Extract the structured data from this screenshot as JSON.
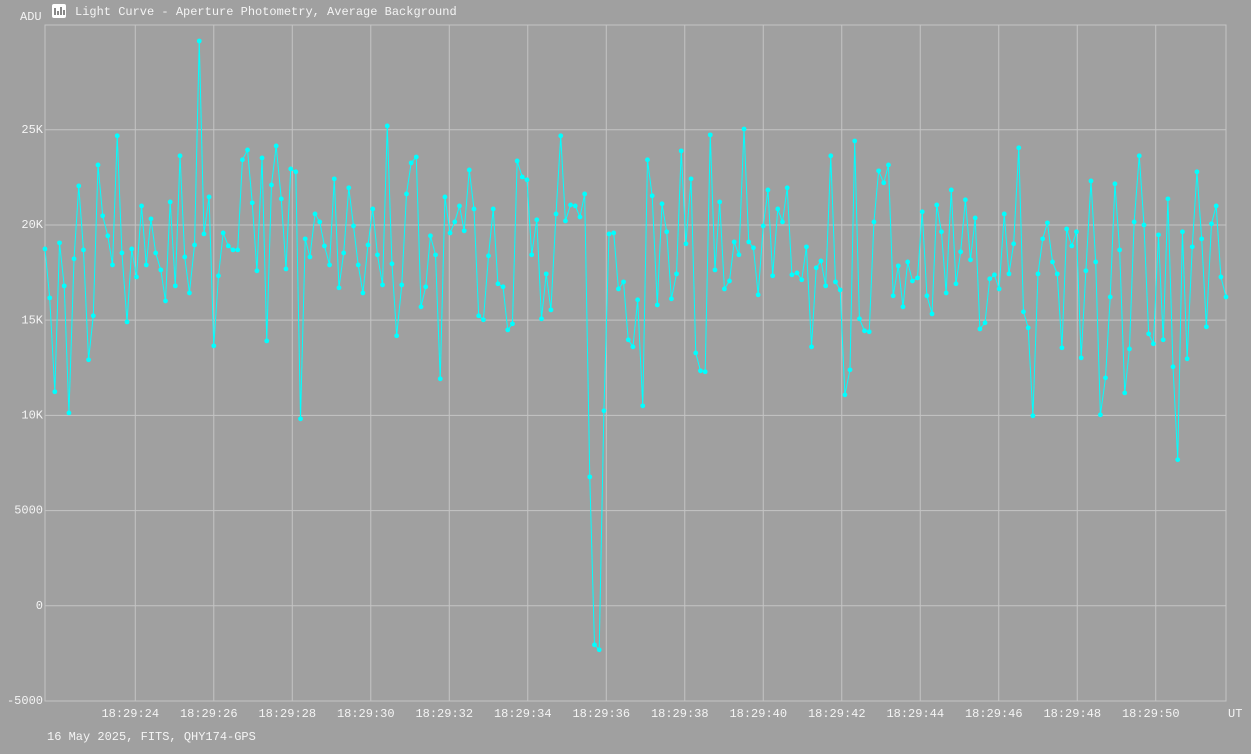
{
  "chart_data": {
    "type": "line",
    "title": "Light Curve - Aperture Photometry, Average Background",
    "y_label": "ADU",
    "x_label": "UT",
    "footer": "16 May 2025, FITS, QHY174-GPS",
    "x": [
      21.7,
      21.82,
      21.95,
      22.07,
      22.19,
      22.31,
      22.44,
      22.56,
      22.68,
      22.81,
      22.93,
      23.05,
      23.17,
      23.3,
      23.42,
      23.54,
      23.66,
      23.79,
      23.91,
      24.03,
      24.16,
      24.28,
      24.4,
      24.52,
      24.65,
      24.77,
      24.89,
      25.02,
      25.14,
      25.26,
      25.38,
      25.51,
      25.63,
      25.75,
      25.88,
      26.0,
      26.12,
      26.24,
      26.37,
      26.49,
      26.61,
      26.73,
      26.86,
      26.98,
      27.1,
      27.23,
      27.35,
      27.47,
      27.59,
      27.72,
      27.84,
      27.96,
      28.09,
      28.21,
      28.33,
      28.45,
      28.58,
      28.7,
      28.82,
      28.95,
      29.07,
      29.19,
      29.31,
      29.44,
      29.56,
      29.68,
      29.8,
      29.93,
      30.05,
      30.17,
      30.3,
      30.42,
      30.54,
      30.66,
      30.79,
      30.91,
      31.03,
      31.16,
      31.28,
      31.4,
      31.52,
      31.65,
      31.77,
      31.89,
      32.02,
      32.14,
      32.26,
      32.38,
      32.51,
      32.63,
      32.75,
      32.87,
      33.0,
      33.12,
      33.24,
      33.37,
      33.49,
      33.61,
      33.73,
      33.86,
      33.98,
      34.1,
      34.23,
      34.35,
      34.47,
      34.59,
      34.72,
      34.84,
      34.96,
      35.09,
      35.21,
      35.33,
      35.45,
      35.58,
      35.7,
      35.82,
      35.94,
      36.07,
      36.19,
      36.31,
      36.44,
      36.56,
      36.68,
      36.8,
      36.93,
      37.05,
      37.17,
      37.3,
      37.42,
      37.54,
      37.66,
      37.79,
      37.91,
      38.03,
      38.16,
      38.28,
      38.4,
      38.52,
      38.65,
      38.77,
      38.89,
      39.01,
      39.14,
      39.26,
      39.38,
      39.51,
      39.63,
      39.75,
      39.87,
      40.0,
      40.12,
      40.24,
      40.37,
      40.49,
      40.61,
      40.73,
      40.86,
      40.98,
      41.1,
      41.23,
      41.35,
      41.47,
      41.59,
      41.72,
      41.84,
      41.96,
      42.08,
      42.21,
      42.33,
      42.45,
      42.58,
      42.7,
      42.82,
      42.94,
      43.07,
      43.19,
      43.31,
      43.44,
      43.56,
      43.68,
      43.8,
      43.93,
      44.05,
      44.17,
      44.3,
      44.42,
      44.54,
      44.66,
      44.79,
      44.91,
      45.03,
      45.15,
      45.28,
      45.4,
      45.52,
      45.65,
      45.77,
      45.89,
      46.01,
      46.14,
      46.26,
      46.38,
      46.51,
      46.63,
      46.75,
      46.87,
      47.0,
      47.12,
      47.24,
      47.37,
      47.49,
      47.61,
      47.73,
      47.86,
      47.98,
      48.1,
      48.22,
      48.35,
      48.47,
      48.59,
      48.72,
      48.84,
      48.96,
      49.08,
      49.21,
      49.33,
      49.45,
      49.58,
      49.7,
      49.82,
      49.94,
      50.07,
      50.19,
      50.31,
      50.44,
      50.56,
      50.68,
      50.8,
      50.93,
      51.05,
      51.17,
      51.29,
      51.42,
      51.54,
      51.66,
      51.79
    ],
    "series": [
      {
        "color": "#00ffff",
        "values": [
          18740,
          16170,
          11240,
          19060,
          16800,
          10130,
          18220,
          22050,
          18690,
          12920,
          15230,
          23150,
          20480,
          19430,
          17900,
          24680,
          18530,
          14910,
          18740,
          17270,
          21000,
          17900,
          20320,
          18530,
          17640,
          16010,
          21210,
          16800,
          23630,
          18320,
          16430,
          18950,
          29660,
          19530,
          21470,
          13650,
          17330,
          19580,
          18900,
          18690,
          18690,
          23420,
          23940,
          21160,
          17590,
          23520,
          13910,
          22100,
          24150,
          21370,
          17690,
          22940,
          22790,
          9820,
          19270,
          18320,
          20580,
          20160,
          18900,
          17900,
          22420,
          16700,
          18530,
          21950,
          19950,
          17900,
          16430,
          18950,
          20840,
          18430,
          16850,
          25200,
          17960,
          14180,
          16850,
          21630,
          23260,
          23570,
          15700,
          16750,
          19430,
          18430,
          11920,
          21470,
          19580,
          20160,
          21000,
          19690,
          22890,
          20840,
          15230,
          15020,
          18380,
          20840,
          16910,
          16750,
          14490,
          14810,
          23360,
          22520,
          22370,
          18430,
          20270,
          15070,
          17430,
          15540,
          20580,
          24680,
          20210,
          21050,
          21000,
          20420,
          21630,
          6770,
          -2050,
          -2310,
          10240,
          19530,
          19580,
          16640,
          17010,
          13970,
          13600,
          16070,
          10500,
          23420,
          21530,
          15800,
          21110,
          19640,
          16120,
          17430,
          23890,
          19010,
          22420,
          13280,
          12340,
          12290,
          24730,
          17640,
          21210,
          16640,
          17060,
          19110,
          18430,
          25040,
          19110,
          18800,
          16330,
          19950,
          21840,
          17330,
          20840,
          20160,
          21950,
          17380,
          17480,
          17120,
          18850,
          13600,
          17750,
          18110,
          16800,
          23630,
          17010,
          16590,
          11080,
          12390,
          24410,
          15070,
          14440,
          14390,
          20160,
          22840,
          22210,
          23150,
          16280,
          17850,
          15700,
          18060,
          17060,
          17220,
          20690,
          16280,
          15330,
          21050,
          19640,
          16430,
          21840,
          16910,
          18590,
          21320,
          18170,
          20370,
          14540,
          14860,
          17170,
          17380,
          16640,
          20580,
          17430,
          19010,
          24050,
          15440,
          14600,
          9980,
          17430,
          19270,
          20110,
          18060,
          17430,
          13550,
          19790,
          18900,
          19640,
          13020,
          17590,
          22310,
          18060,
          10030,
          11970,
          16220,
          22160,
          18690,
          11180,
          13490,
          20160,
          23630,
          20000,
          14280,
          13760,
          19480,
          13970,
          21370,
          12550,
          7670,
          19640,
          12970,
          18850,
          22790,
          19270,
          14650,
          20060,
          21000,
          17270,
          16220
        ]
      }
    ],
    "xlim": [
      21.7,
      51.79
    ],
    "xticks": [
      {
        "value": 24,
        "label": "18:29:24"
      },
      {
        "value": 26,
        "label": "18:29:26"
      },
      {
        "value": 28,
        "label": "18:29:28"
      },
      {
        "value": 30,
        "label": "18:29:30"
      },
      {
        "value": 32,
        "label": "18:29:32"
      },
      {
        "value": 34,
        "label": "18:29:34"
      },
      {
        "value": 36,
        "label": "18:29:36"
      },
      {
        "value": 38,
        "label": "18:29:38"
      },
      {
        "value": 40,
        "label": "18:29:40"
      },
      {
        "value": 42,
        "label": "18:29:42"
      },
      {
        "value": 44,
        "label": "18:29:44"
      },
      {
        "value": 46,
        "label": "18:29:46"
      },
      {
        "value": 48,
        "label": "18:29:48"
      },
      {
        "value": 50,
        "label": "18:29:50"
      }
    ],
    "ylim": [
      -5000,
      30500
    ],
    "yticks": [
      -5000,
      0,
      5000,
      {
        "value": 10000,
        "label": "10K"
      },
      {
        "value": 15000,
        "label": "15K"
      },
      {
        "value": 20000,
        "label": "20K"
      },
      {
        "value": 25000,
        "label": "25K"
      }
    ],
    "grid": true
  }
}
